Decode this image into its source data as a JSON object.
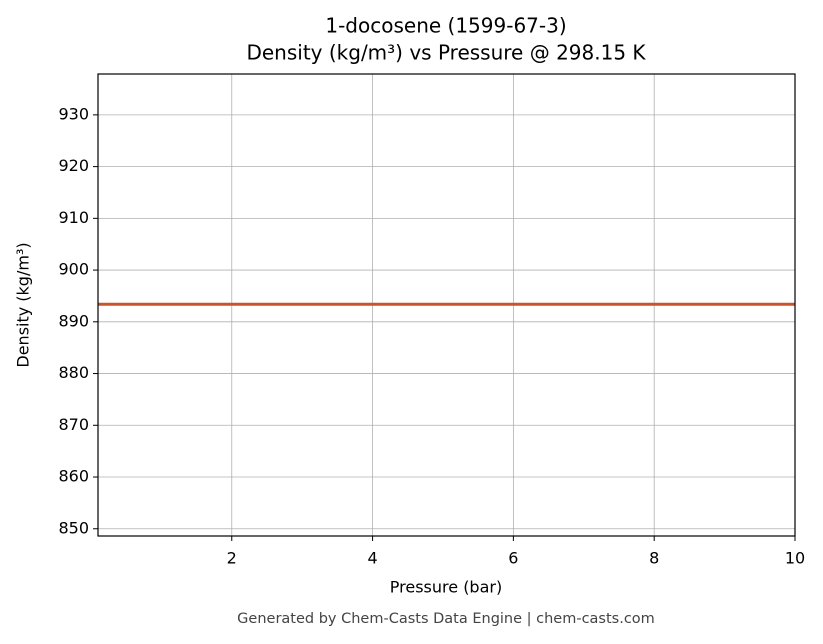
{
  "chart_data": {
    "type": "line",
    "title": "1-docosene (1599-67-3)",
    "subtitle": "Density (kg/m³) vs Pressure @ 298.15 K",
    "x_label": "Pressure (bar)",
    "y_label": "Density (kg/m³)",
    "footer": "Generated by Chem-Casts Data Engine | chem-casts.com",
    "x": [
      0.1,
      10
    ],
    "series": [
      {
        "name": "Density",
        "color": "#c9542b",
        "values": [
          893.4,
          893.4
        ]
      }
    ],
    "xlim": [
      0.1,
      10
    ],
    "xticks": [
      2,
      4,
      6,
      8,
      10
    ],
    "ylim": [
      848.6,
      937.9
    ],
    "yticks": [
      850,
      860,
      870,
      880,
      890,
      900,
      910,
      920,
      930
    ],
    "grid": true
  }
}
